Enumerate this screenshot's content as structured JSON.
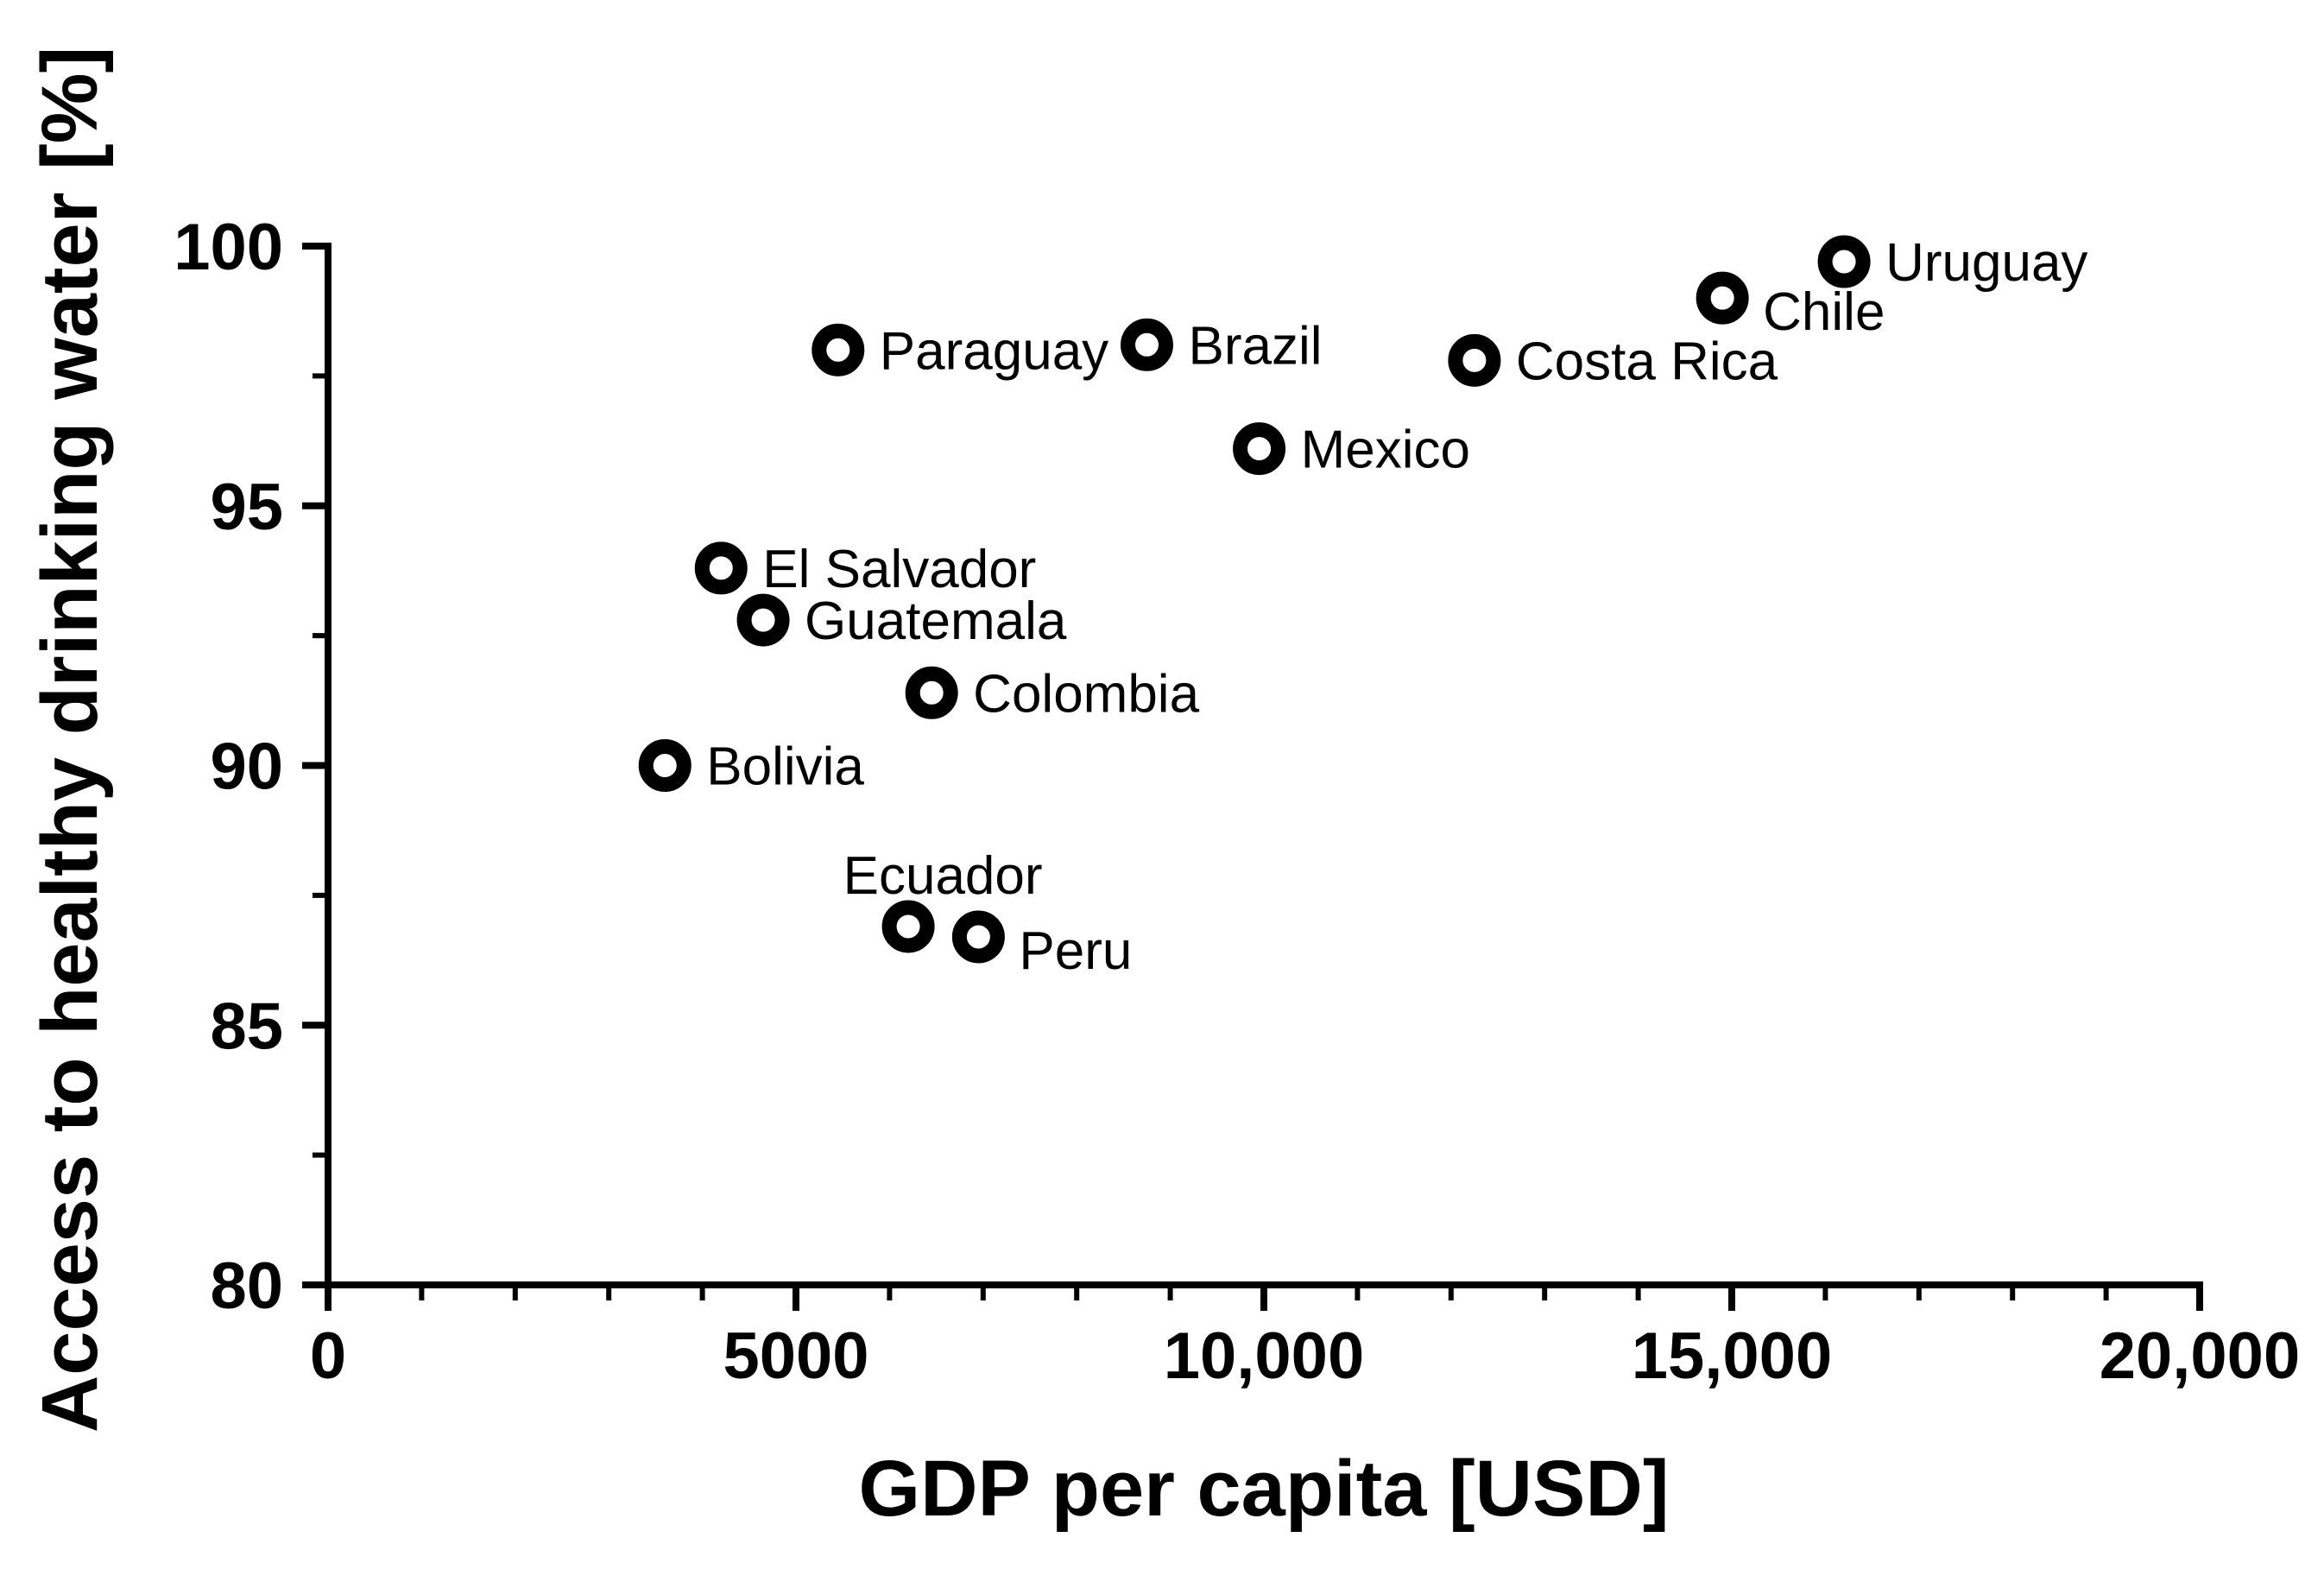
{
  "chart_data": {
    "type": "scatter",
    "xlabel": "GDP per capita [USD]",
    "ylabel": "Access to healthy drinking water [%]",
    "xlim": [
      0,
      20000
    ],
    "ylim": [
      80,
      100
    ],
    "x_ticks": [
      0,
      5000,
      10000,
      15000,
      20000
    ],
    "x_tick_labels": [
      "0",
      "5000",
      "10,000",
      "15,000",
      "20,000"
    ],
    "y_ticks": [
      80,
      85,
      90,
      95,
      100
    ],
    "y_tick_labels": [
      "80",
      "85",
      "90",
      "95",
      "100"
    ],
    "x_minor_step": 1000,
    "y_minor_step": 2.5,
    "grid": false,
    "legend": "none",
    "marker_style": "open circle",
    "colors": {
      "marker_stroke": "#000000",
      "marker_fill": "#ffffff",
      "axis": "#000000"
    },
    "points": [
      {
        "label": "Uruguay",
        "x": 16200,
        "y": 99.7,
        "label_pos": "right"
      },
      {
        "label": "Chile",
        "x": 14900,
        "y": 99.0,
        "label_pos": "below-right"
      },
      {
        "label": "Brazil",
        "x": 8750,
        "y": 98.1,
        "label_pos": "right"
      },
      {
        "label": "Paraguay",
        "x": 5450,
        "y": 98.0,
        "label_pos": "right"
      },
      {
        "label": "Costa Rica",
        "x": 12250,
        "y": 97.8,
        "label_pos": "right"
      },
      {
        "label": "Mexico",
        "x": 9950,
        "y": 96.1,
        "label_pos": "right"
      },
      {
        "label": "El Salvador",
        "x": 4200,
        "y": 93.8,
        "label_pos": "right"
      },
      {
        "label": "Guatemala",
        "x": 4650,
        "y": 92.8,
        "label_pos": "right"
      },
      {
        "label": "Colombia",
        "x": 6450,
        "y": 91.4,
        "label_pos": "right"
      },
      {
        "label": "Bolivia",
        "x": 3600,
        "y": 90.0,
        "label_pos": "right"
      },
      {
        "label": "Ecuador",
        "x": 6200,
        "y": 86.9,
        "label_pos": "above"
      },
      {
        "label": "Peru",
        "x": 6950,
        "y": 86.7,
        "label_pos": "below-right"
      }
    ]
  }
}
